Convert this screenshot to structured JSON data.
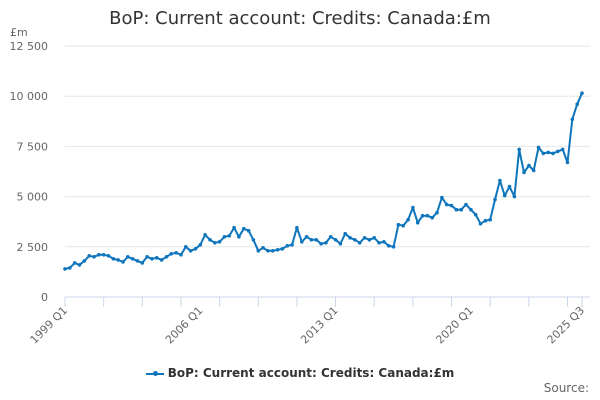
{
  "title": "BoP: Current account: Credits: Canada:£m",
  "unit_label": "£m",
  "legend_label": "BoP: Current account: Credits: Canada:£m",
  "source_label": "Source:",
  "series_color": "#0f75bc",
  "chart_data": {
    "type": "line",
    "title": "BoP: Current account: Credits: Canada:£m",
    "xlabel": "",
    "ylabel": "£m",
    "ylim": [
      0,
      12500
    ],
    "yticks": [
      0,
      2500,
      5000,
      7500,
      10000,
      12500
    ],
    "ytick_labels": [
      "0",
      "2 500",
      "5 000",
      "7 500",
      "10 000",
      "12 500"
    ],
    "xtick_labels": [
      "1999 Q1",
      "2006 Q1",
      "2013 Q1",
      "2020 Q1",
      "2025 Q3"
    ],
    "grid": true,
    "legend_position": "bottom",
    "series": [
      {
        "name": "BoP: Current account: Credits: Canada:£m",
        "values": [
          1400,
          1450,
          1700,
          1600,
          1800,
          2050,
          2000,
          2100,
          2100,
          2050,
          1900,
          1850,
          1750,
          2000,
          1900,
          1800,
          1700,
          2000,
          1900,
          1950,
          1850,
          2000,
          2150,
          2200,
          2100,
          2500,
          2300,
          2400,
          2600,
          3100,
          2850,
          2700,
          2750,
          3000,
          3050,
          3450,
          3000,
          3400,
          3300,
          2850,
          2300,
          2450,
          2300,
          2300,
          2350,
          2400,
          2550,
          2600,
          3450,
          2750,
          3000,
          2850,
          2850,
          2650,
          2700,
          3000,
          2850,
          2650,
          3150,
          2950,
          2850,
          2700,
          2950,
          2850,
          2950,
          2700,
          2750,
          2550,
          2500,
          3600,
          3550,
          3850,
          4450,
          3700,
          4050,
          4050,
          3950,
          4200,
          4950,
          4600,
          4550,
          4350,
          4350,
          4600,
          4350,
          4100,
          3650,
          3800,
          3850,
          4850,
          5800,
          5050,
          5500,
          5000,
          7350,
          6200,
          6550,
          6300,
          7450,
          7150,
          7200,
          7150,
          7250,
          7350,
          6700,
          8850,
          9600,
          10150
        ]
      }
    ],
    "x_start": "1999 Q1",
    "x_end": "2025 Q3"
  }
}
